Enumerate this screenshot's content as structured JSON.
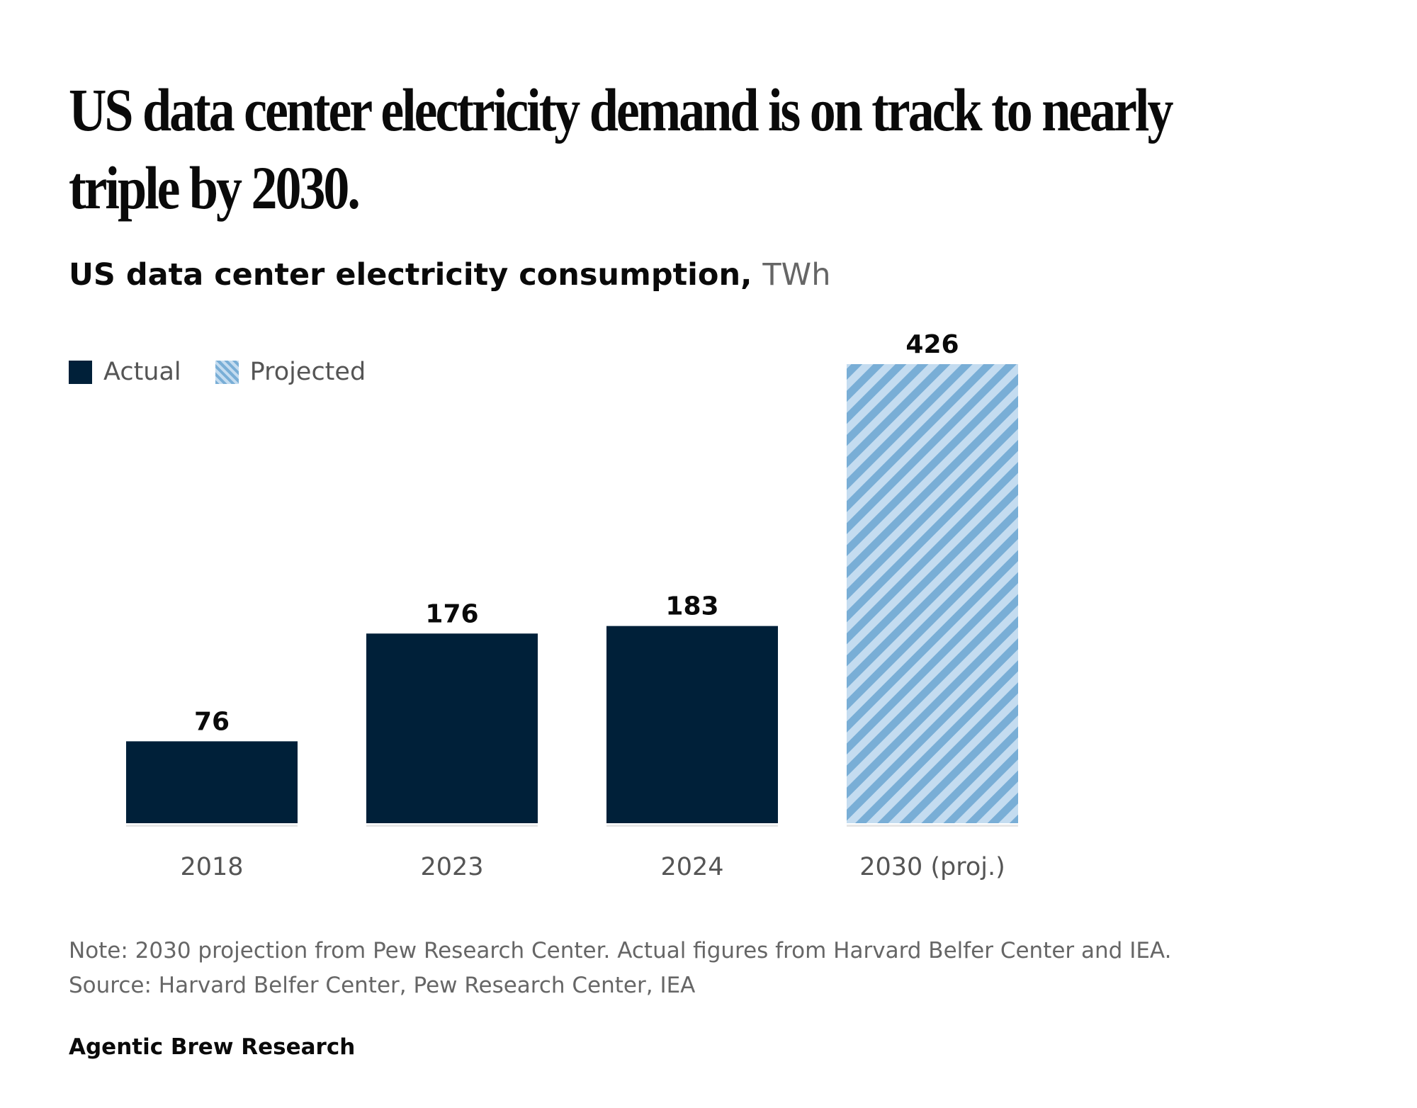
{
  "headline": "US data center electricity demand is on track to nearly triple by 2030.",
  "subtitle": {
    "text": "US data center electricity consumption,",
    "unit": "TWh"
  },
  "legend": {
    "actual": "Actual",
    "projected": "Projected"
  },
  "colors": {
    "actual": "#002039",
    "projected_stripe_dark": "#79aed6",
    "projected_stripe_light": "#c4dcf0",
    "baseline": "#e6e6e6"
  },
  "chart_data": {
    "type": "bar",
    "title": "US data center electricity consumption, TWh",
    "categories": [
      "2018",
      "2023",
      "2024",
      "2030 (proj.)"
    ],
    "values": [
      76,
      176,
      183,
      426
    ],
    "value_labels": [
      "76",
      "176",
      "183",
      "426"
    ],
    "series_kind": [
      "actual",
      "actual",
      "actual",
      "projected"
    ],
    "xlabel": "",
    "ylabel": "TWh",
    "ylim": [
      0,
      426
    ],
    "grid": false,
    "legend": "top-left"
  },
  "footer": {
    "note": "Note: 2030 projection from Pew Research Center. Actual figures from Harvard Belfer Center and IEA.",
    "source": "Source: Harvard Belfer Center, Pew Research Center, IEA",
    "brand": "Agentic Brew Research"
  }
}
